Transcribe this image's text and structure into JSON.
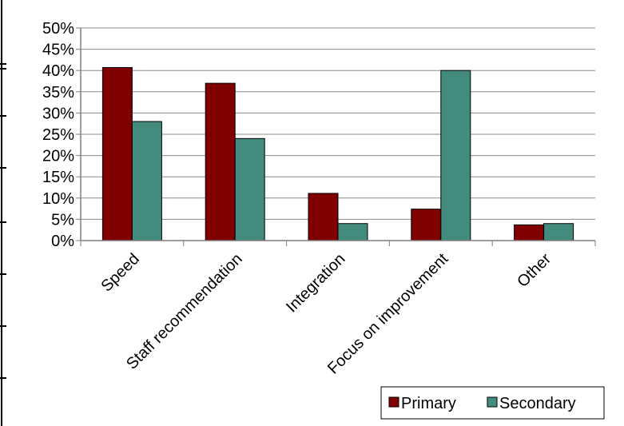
{
  "chart_data": {
    "type": "bar",
    "title": "",
    "xlabel": "",
    "ylabel": "",
    "categories": [
      "Speed",
      "Staff recommendation",
      "Integration",
      "Focus on improvement",
      "Other"
    ],
    "series": [
      {
        "name": "Primary",
        "values": [
          40.7,
          37.0,
          11.1,
          7.4,
          3.7
        ]
      },
      {
        "name": "Secondary",
        "values": [
          28.0,
          24.0,
          4.0,
          40.0,
          4.0
        ]
      }
    ],
    "ylim": [
      0,
      50
    ],
    "y_ticks": [
      0,
      5,
      10,
      15,
      20,
      25,
      30,
      35,
      40,
      45,
      50
    ],
    "y_tick_labels": [
      "0%",
      "5%",
      "10%",
      "15%",
      "20%",
      "25%",
      "30%",
      "35%",
      "40%",
      "45%",
      "50%"
    ],
    "grid": true,
    "legend_position": "bottom-right",
    "colors": {
      "Primary": "#800000",
      "Secondary": "#428b7d",
      "gridline": "#8c8c8c",
      "axis": "#7f7f7f",
      "border": "#000000"
    }
  }
}
